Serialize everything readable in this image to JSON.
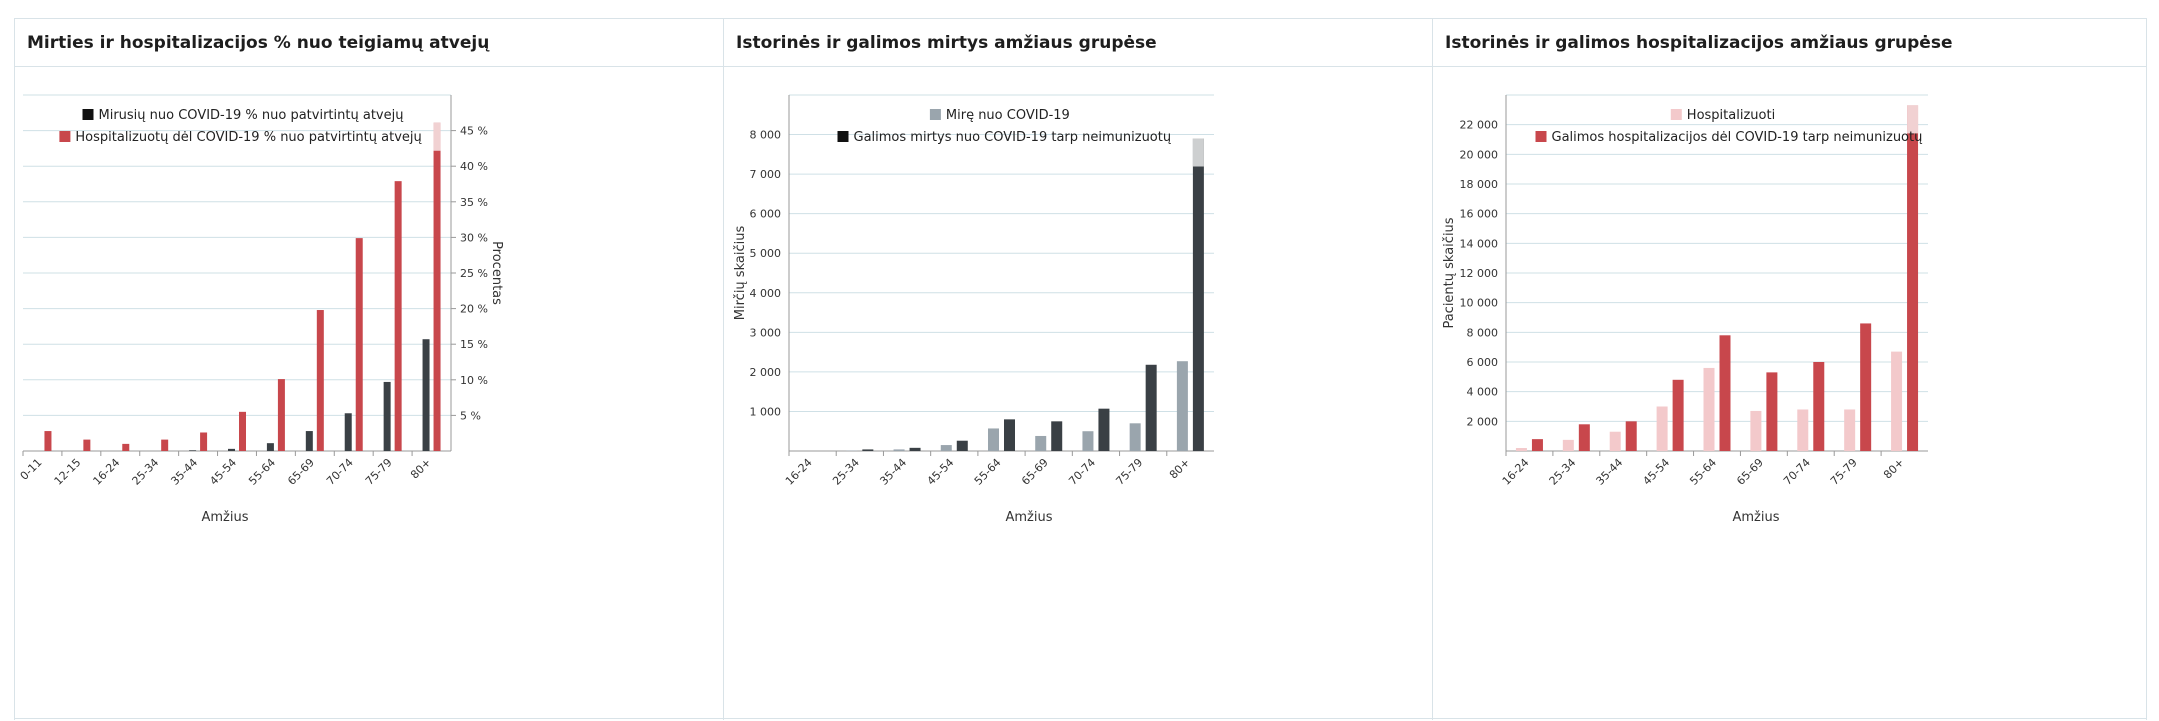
{
  "palette": {
    "black": "#3a4045",
    "red": "#c8474c",
    "red_light": "#f3c9cb",
    "grey": "#9aa5ad",
    "grid": "#cfe0e6",
    "axis": "#999999",
    "text": "#333333"
  },
  "chart_data": [
    {
      "type": "bar",
      "title": "Mirties ir hospitalizacijos % nuo teigiamų atvejų",
      "xlabel": "Amžius",
      "ylabel": "Procentas",
      "ylabel_side": "right",
      "categories": [
        "0-11",
        "12-15",
        "16-24",
        "25-34",
        "35-44",
        "45-54",
        "55-64",
        "65-69",
        "70-74",
        "75-79",
        "80+"
      ],
      "ylim": [
        0,
        50
      ],
      "yticks": [
        5,
        10,
        15,
        20,
        25,
        30,
        35,
        40,
        45
      ],
      "ytick_labels": [
        "5 %",
        "10 %",
        "15 %",
        "20 %",
        "25 %",
        "30 %",
        "35 %",
        "40 %",
        "45 %"
      ],
      "legend_position": "top-center",
      "series": [
        {
          "name": "Mirusių nuo COVID-19 % nuo patvirtintų atvejų",
          "color": "#3a4045",
          "values": [
            0,
            0,
            0,
            0,
            0.1,
            0.3,
            1.1,
            2.8,
            5.3,
            9.7,
            15.7
          ]
        },
        {
          "name": "Hospitalizuotų dėl COVID-19 % nuo patvirtintų atvejų",
          "color": "#c8474c",
          "values": [
            2.8,
            1.6,
            1.0,
            1.6,
            2.6,
            5.5,
            10.1,
            19.8,
            29.9,
            37.9,
            46.1
          ]
        }
      ]
    },
    {
      "type": "bar",
      "title": "Istorinės ir galimos mirtys amžiaus grupėse",
      "xlabel": "Amžius",
      "ylabel": "Mirčių skaičius",
      "ylabel_side": "left",
      "categories": [
        "16-24",
        "25-34",
        "35-44",
        "45-54",
        "55-64",
        "65-69",
        "70-74",
        "75-79",
        "80+"
      ],
      "ylim": [
        0,
        9000
      ],
      "yticks": [
        1000,
        2000,
        3000,
        4000,
        5000,
        6000,
        7000,
        8000
      ],
      "ytick_labels": [
        "1 000",
        "2 000",
        "3 000",
        "4 000",
        "5 000",
        "6 000",
        "7 000",
        "8 000"
      ],
      "legend_position": "top-center",
      "series": [
        {
          "name": "Mirę nuo COVID-19",
          "color": "#9aa5ad",
          "values": [
            0,
            10,
            40,
            150,
            570,
            380,
            500,
            700,
            2270
          ]
        },
        {
          "name": "Galimos mirtys nuo COVID-19 tarp neimunizuotų",
          "color": "#3a4045",
          "values": [
            0,
            40,
            80,
            260,
            800,
            750,
            1070,
            2180,
            7900
          ]
        }
      ]
    },
    {
      "type": "bar",
      "title": "Istorinės ir galimos hospitalizacijos amžiaus grupėse",
      "xlabel": "Amžius",
      "ylabel": "Pacientų skaičius",
      "ylabel_side": "left",
      "categories": [
        "16-24",
        "25-34",
        "35-44",
        "45-54",
        "55-64",
        "65-69",
        "70-74",
        "75-79",
        "80+"
      ],
      "ylim": [
        0,
        24000
      ],
      "yticks": [
        2000,
        4000,
        6000,
        8000,
        10000,
        12000,
        14000,
        16000,
        18000,
        20000,
        22000
      ],
      "ytick_labels": [
        "2 000",
        "4 000",
        "6 000",
        "8 000",
        "10 000",
        "12 000",
        "14 000",
        "16 000",
        "18 000",
        "20 000",
        "22 000"
      ],
      "legend_position": "top-center",
      "series": [
        {
          "name": "Hospitalizuoti",
          "color": "#f3c9cb",
          "values": [
            200,
            750,
            1300,
            3000,
            5600,
            2700,
            2800,
            2800,
            6700
          ]
        },
        {
          "name": "Galimos hospitalizacijos dėl COVID-19 tarp neimunizuotų",
          "color": "#c8474c",
          "values": [
            800,
            1800,
            2000,
            4800,
            7800,
            5300,
            6000,
            8600,
            23300
          ]
        }
      ]
    }
  ]
}
